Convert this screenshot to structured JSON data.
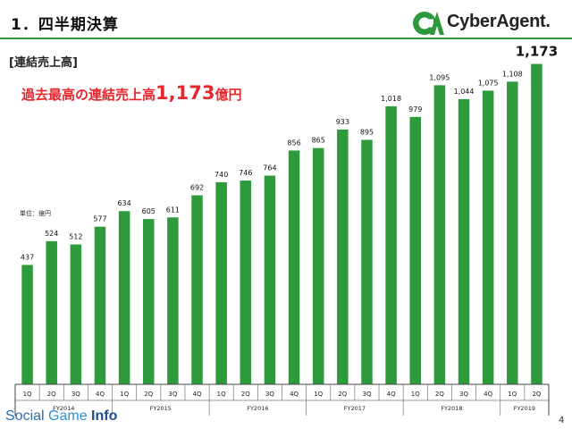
{
  "slide": {
    "title": "1．四半期決算",
    "section_label": "[連結売上高]",
    "headline_prefix": "過去最高の連結売上高",
    "headline_value": "1,173",
    "headline_suffix": "億円",
    "unit_label": "単位：億円",
    "page_number": "4",
    "watermark_social": "Social ",
    "watermark_game": "Game ",
    "watermark_info": "Info"
  },
  "logo": {
    "mark_text": "CA",
    "brand_text": "CyberAgent."
  },
  "colors": {
    "bar": "#2d9a3c",
    "accent_red": "#e8262d",
    "brand_green": "#2c9a3c"
  },
  "chart_data": {
    "type": "bar",
    "title": "",
    "xlabel": "",
    "ylabel": "",
    "ylim": [
      0,
      1250
    ],
    "grid": false,
    "quarters": [
      "1Q",
      "2Q",
      "3Q",
      "4Q",
      "1Q",
      "2Q",
      "3Q",
      "4Q",
      "1Q",
      "2Q",
      "3Q",
      "4Q",
      "1Q",
      "2Q",
      "3Q",
      "4Q",
      "1Q",
      "2Q",
      "3Q",
      "4Q",
      "1Q",
      "2Q"
    ],
    "fiscal_years": [
      {
        "label": "FY2014",
        "quarters": 4
      },
      {
        "label": "FY2015",
        "quarters": 4
      },
      {
        "label": "FY2016",
        "quarters": 4
      },
      {
        "label": "FY2017",
        "quarters": 4
      },
      {
        "label": "FY2018",
        "quarters": 4
      },
      {
        "label": "FY2019",
        "quarters": 2
      }
    ],
    "values": [
      437,
      524,
      512,
      577,
      634,
      605,
      611,
      692,
      740,
      746,
      764,
      856,
      865,
      933,
      895,
      1018,
      979,
      1095,
      1044,
      1075,
      1108,
      1173
    ],
    "value_labels": [
      "437",
      "524",
      "512",
      "577",
      "634",
      "605",
      "611",
      "692",
      "740",
      "746",
      "764",
      "856",
      "865",
      "933",
      "895",
      "1,018",
      "979",
      "1,095",
      "1,044",
      "1,075",
      "1,108",
      "1,173"
    ],
    "highlight_last": true
  }
}
